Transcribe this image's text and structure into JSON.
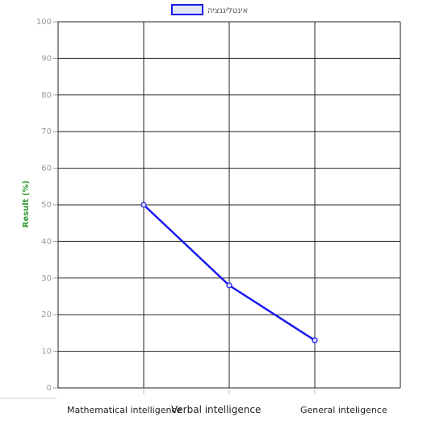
{
  "chart_data": {
    "type": "line",
    "categories": [
      "Mathematical intelligence",
      "Verbal intelligence",
      "General inteligence"
    ],
    "series": [
      {
        "name": "אינטליגנציה",
        "values": [
          50,
          28,
          13
        ],
        "color": "#1a1aee"
      }
    ],
    "ylabel": "Result (%)",
    "xlabel": "",
    "ylim": [
      0,
      100
    ],
    "yticks": [
      0,
      10,
      20,
      30,
      40,
      50,
      60,
      70,
      80,
      90,
      100
    ],
    "grid": true,
    "legend_position": "top-center",
    "colors": {
      "grid": "#222222",
      "axis_label": "#2e9a2e",
      "tick_label": "#9a9a9a"
    }
  }
}
